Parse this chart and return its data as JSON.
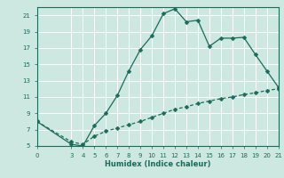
{
  "xlabel": "Humidex (Indice chaleur)",
  "bg_color": "#cce8e0",
  "grid_color": "#ffffff",
  "line_color": "#1a6b5a",
  "upper_x": [
    0,
    3,
    4,
    5,
    6,
    7,
    8,
    9,
    10,
    11,
    12,
    13,
    14,
    15,
    16,
    17,
    18,
    19,
    20,
    21
  ],
  "upper_y": [
    8.0,
    5.2,
    5.0,
    7.5,
    9.0,
    11.2,
    14.2,
    16.8,
    18.5,
    21.2,
    21.8,
    20.2,
    20.4,
    17.2,
    18.2,
    18.2,
    18.3,
    16.2,
    14.2,
    12.2
  ],
  "lower_x": [
    0,
    3,
    4,
    5,
    6,
    7,
    8,
    9,
    10,
    11,
    12,
    13,
    14,
    15,
    16,
    17,
    18,
    19,
    20,
    21
  ],
  "lower_y": [
    8.0,
    5.5,
    5.2,
    6.2,
    6.8,
    7.2,
    7.6,
    8.0,
    8.5,
    9.0,
    9.5,
    9.8,
    10.2,
    10.5,
    10.8,
    11.0,
    11.3,
    11.5,
    11.8,
    12.0
  ],
  "xlim": [
    0,
    21
  ],
  "ylim": [
    5,
    22
  ],
  "xticks": [
    0,
    3,
    4,
    5,
    6,
    7,
    8,
    9,
    10,
    11,
    12,
    13,
    14,
    15,
    16,
    17,
    18,
    19,
    20,
    21
  ],
  "yticks": [
    5,
    7,
    9,
    11,
    13,
    15,
    17,
    19,
    21
  ],
  "markersize": 2.5,
  "linewidth": 0.9,
  "tick_fontsize": 5.0,
  "xlabel_fontsize": 6.0
}
